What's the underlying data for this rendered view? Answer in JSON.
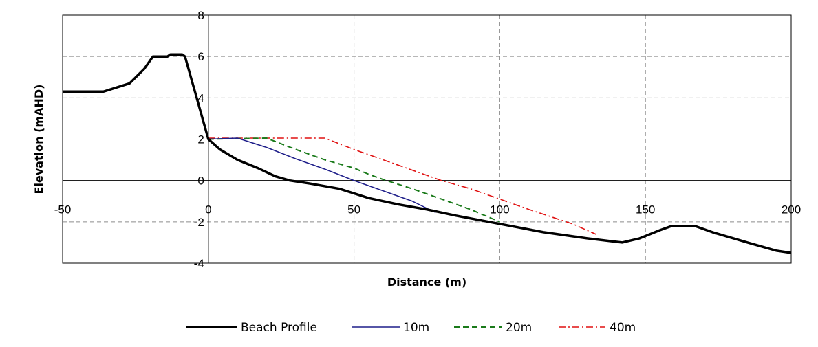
{
  "chart_data": {
    "type": "line",
    "title": "",
    "xlabel": "Distance (m)",
    "ylabel": "Elevation (mAHD)",
    "xlim": [
      -50,
      200
    ],
    "ylim": [
      -4,
      8
    ],
    "x_ticks": [
      "-50",
      "0",
      "50",
      "100",
      "150",
      "200"
    ],
    "y_ticks": [
      "-4",
      "-2",
      "0",
      "2",
      "4",
      "6",
      "8"
    ],
    "x_tick_values": [
      -50,
      0,
      50,
      100,
      150,
      200
    ],
    "y_tick_values": [
      -4,
      -2,
      0,
      2,
      4,
      6,
      8
    ],
    "grid": true,
    "legend_position": "bottom",
    "series": [
      {
        "name": "Beach Profile",
        "color": "#000000",
        "style": "solid-thick",
        "points": [
          [
            -50,
            4.3
          ],
          [
            -36,
            4.3
          ],
          [
            -27,
            4.7
          ],
          [
            -22,
            5.4
          ],
          [
            -19,
            6.0
          ],
          [
            -14,
            6.0
          ],
          [
            -13,
            6.1
          ],
          [
            -9,
            6.1
          ],
          [
            -8,
            6.0
          ],
          [
            -6,
            5.0
          ],
          [
            -4,
            4.0
          ],
          [
            -2,
            3.0
          ],
          [
            0,
            2.0
          ],
          [
            4,
            1.5
          ],
          [
            10,
            1.0
          ],
          [
            17,
            0.6
          ],
          [
            23,
            0.2
          ],
          [
            28,
            0.0
          ],
          [
            35,
            -0.15
          ],
          [
            45,
            -0.4
          ],
          [
            55,
            -0.85
          ],
          [
            65,
            -1.15
          ],
          [
            75,
            -1.4
          ],
          [
            85,
            -1.7
          ],
          [
            100,
            -2.1
          ],
          [
            115,
            -2.5
          ],
          [
            130,
            -2.8
          ],
          [
            142,
            -3.0
          ],
          [
            148,
            -2.8
          ],
          [
            155,
            -2.4
          ],
          [
            159,
            -2.2
          ],
          [
            167,
            -2.2
          ],
          [
            173,
            -2.5
          ],
          [
            185,
            -3.0
          ],
          [
            195,
            -3.4
          ],
          [
            200,
            -3.5
          ]
        ]
      },
      {
        "name": "10m",
        "color": "#1f1f8a",
        "style": "solid-thin",
        "points": [
          [
            0,
            2.0
          ],
          [
            10,
            2.05
          ],
          [
            20,
            1.6
          ],
          [
            30,
            1.05
          ],
          [
            40,
            0.55
          ],
          [
            50,
            0.0
          ],
          [
            60,
            -0.5
          ],
          [
            70,
            -1.0
          ],
          [
            78,
            -1.55
          ]
        ]
      },
      {
        "name": "20m",
        "color": "#1a7a1a",
        "style": "dashed",
        "points": [
          [
            0,
            2.0
          ],
          [
            20,
            2.05
          ],
          [
            30,
            1.5
          ],
          [
            40,
            1.0
          ],
          [
            50,
            0.6
          ],
          [
            55,
            0.3
          ],
          [
            60,
            0.05
          ],
          [
            70,
            -0.4
          ],
          [
            80,
            -0.9
          ],
          [
            90,
            -1.4
          ],
          [
            100,
            -2.0
          ]
        ]
      },
      {
        "name": "40m",
        "color": "#e01010",
        "style": "dashdot",
        "points": [
          [
            0,
            2.05
          ],
          [
            40,
            2.05
          ],
          [
            50,
            1.5
          ],
          [
            60,
            1.0
          ],
          [
            70,
            0.5
          ],
          [
            80,
            0.0
          ],
          [
            90,
            -0.4
          ],
          [
            100,
            -0.9
          ],
          [
            110,
            -1.4
          ],
          [
            125,
            -2.1
          ],
          [
            133,
            -2.6
          ]
        ]
      }
    ]
  }
}
